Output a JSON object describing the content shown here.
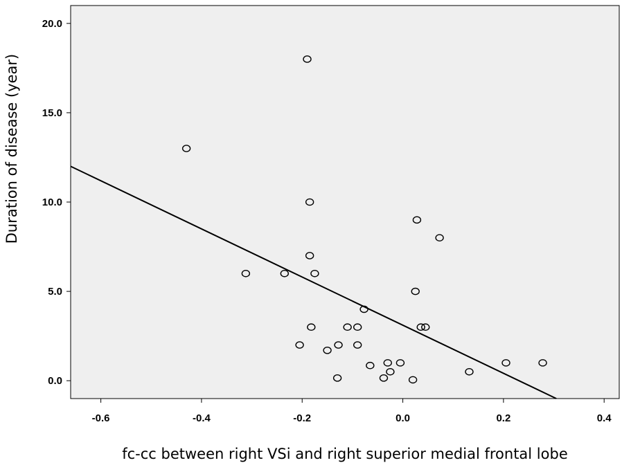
{
  "chart_data": {
    "type": "scatter",
    "title": "",
    "xlabel": "fc-cc between right VSi and right superior medial frontal lobe",
    "ylabel": "Duration of disease (year)",
    "xlim": [
      -0.66,
      0.43
    ],
    "ylim": [
      -1.0,
      21.0
    ],
    "xticks": [
      -0.6,
      -0.4,
      -0.2,
      0.0,
      0.2,
      0.4
    ],
    "xtick_labels": [
      "-0.6",
      "-0.4",
      "-0.2",
      "0.0",
      "0.2",
      "0.4"
    ],
    "yticks": [
      0,
      5,
      10,
      15,
      20
    ],
    "ytick_labels": [
      "0.0",
      "5.0",
      "10.0",
      "15.0",
      "20.0"
    ],
    "grid": false,
    "colors": {
      "plot_background": "#efefef",
      "points": "#000000",
      "fit_line": "#000000"
    },
    "points": [
      {
        "x": -0.19,
        "y": 18.0
      },
      {
        "x": -0.43,
        "y": 13.0
      },
      {
        "x": -0.185,
        "y": 10.0
      },
      {
        "x": 0.028,
        "y": 9.0
      },
      {
        "x": 0.073,
        "y": 8.0
      },
      {
        "x": -0.185,
        "y": 7.0
      },
      {
        "x": -0.312,
        "y": 6.0
      },
      {
        "x": -0.235,
        "y": 6.0
      },
      {
        "x": -0.175,
        "y": 6.0
      },
      {
        "x": 0.025,
        "y": 5.0
      },
      {
        "x": -0.077,
        "y": 4.0
      },
      {
        "x": -0.182,
        "y": 3.0
      },
      {
        "x": -0.11,
        "y": 3.0
      },
      {
        "x": -0.09,
        "y": 3.0
      },
      {
        "x": 0.036,
        "y": 3.0
      },
      {
        "x": 0.045,
        "y": 3.0
      },
      {
        "x": -0.205,
        "y": 2.0
      },
      {
        "x": -0.128,
        "y": 2.0
      },
      {
        "x": -0.09,
        "y": 2.0
      },
      {
        "x": -0.15,
        "y": 1.7
      },
      {
        "x": -0.065,
        "y": 0.85
      },
      {
        "x": -0.03,
        "y": 1.0
      },
      {
        "x": -0.005,
        "y": 1.0
      },
      {
        "x": -0.025,
        "y": 0.5
      },
      {
        "x": 0.132,
        "y": 0.5
      },
      {
        "x": 0.205,
        "y": 1.0
      },
      {
        "x": 0.278,
        "y": 1.0
      },
      {
        "x": -0.13,
        "y": 0.15
      },
      {
        "x": -0.038,
        "y": 0.15
      },
      {
        "x": 0.02,
        "y": 0.05
      }
    ],
    "fit_line": {
      "type": "linear",
      "start": {
        "x": -0.66,
        "y": 12.0
      },
      "end": {
        "x": 0.305,
        "y": -1.0
      }
    }
  }
}
